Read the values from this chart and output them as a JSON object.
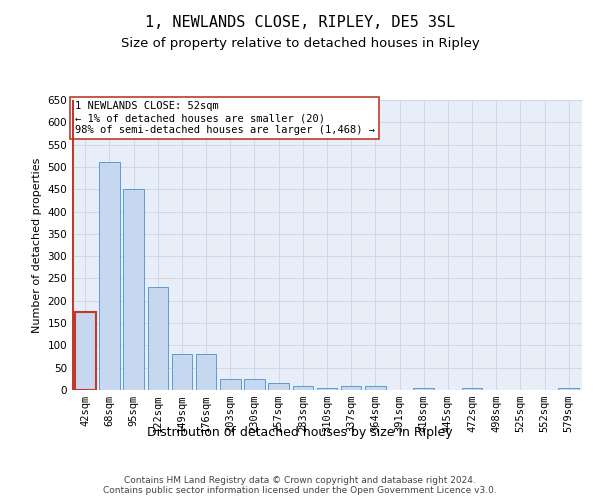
{
  "title": "1, NEWLANDS CLOSE, RIPLEY, DE5 3SL",
  "subtitle": "Size of property relative to detached houses in Ripley",
  "xlabel": "Distribution of detached houses by size in Ripley",
  "ylabel": "Number of detached properties",
  "categories": [
    "42sqm",
    "68sqm",
    "95sqm",
    "122sqm",
    "149sqm",
    "176sqm",
    "203sqm",
    "230sqm",
    "257sqm",
    "283sqm",
    "310sqm",
    "337sqm",
    "364sqm",
    "391sqm",
    "418sqm",
    "445sqm",
    "472sqm",
    "498sqm",
    "525sqm",
    "552sqm",
    "579sqm"
  ],
  "values": [
    175,
    510,
    450,
    230,
    80,
    80,
    25,
    25,
    15,
    10,
    5,
    10,
    10,
    0,
    5,
    0,
    5,
    0,
    0,
    0,
    5
  ],
  "bar_color": "#c5d8f0",
  "bar_edge_color": "#5b9bd5",
  "highlight_bar_index": 0,
  "highlight_bar_edge_color": "#c0392b",
  "annotation_box_text": "1 NEWLANDS CLOSE: 52sqm\n← 1% of detached houses are smaller (20)\n98% of semi-detached houses are larger (1,468) →",
  "annotation_box_color": "#ffffff",
  "annotation_box_edge_color": "#c0392b",
  "ylim": [
    0,
    650
  ],
  "yticks": [
    0,
    50,
    100,
    150,
    200,
    250,
    300,
    350,
    400,
    450,
    500,
    550,
    600,
    650
  ],
  "grid_color": "#d0d8e8",
  "background_color": "#e8eef8",
  "footer_text": "Contains HM Land Registry data © Crown copyright and database right 2024.\nContains public sector information licensed under the Open Government Licence v3.0.",
  "title_fontsize": 11,
  "subtitle_fontsize": 9.5,
  "xlabel_fontsize": 9,
  "ylabel_fontsize": 8,
  "tick_fontsize": 7.5,
  "annotation_fontsize": 7.5,
  "footer_fontsize": 6.5
}
